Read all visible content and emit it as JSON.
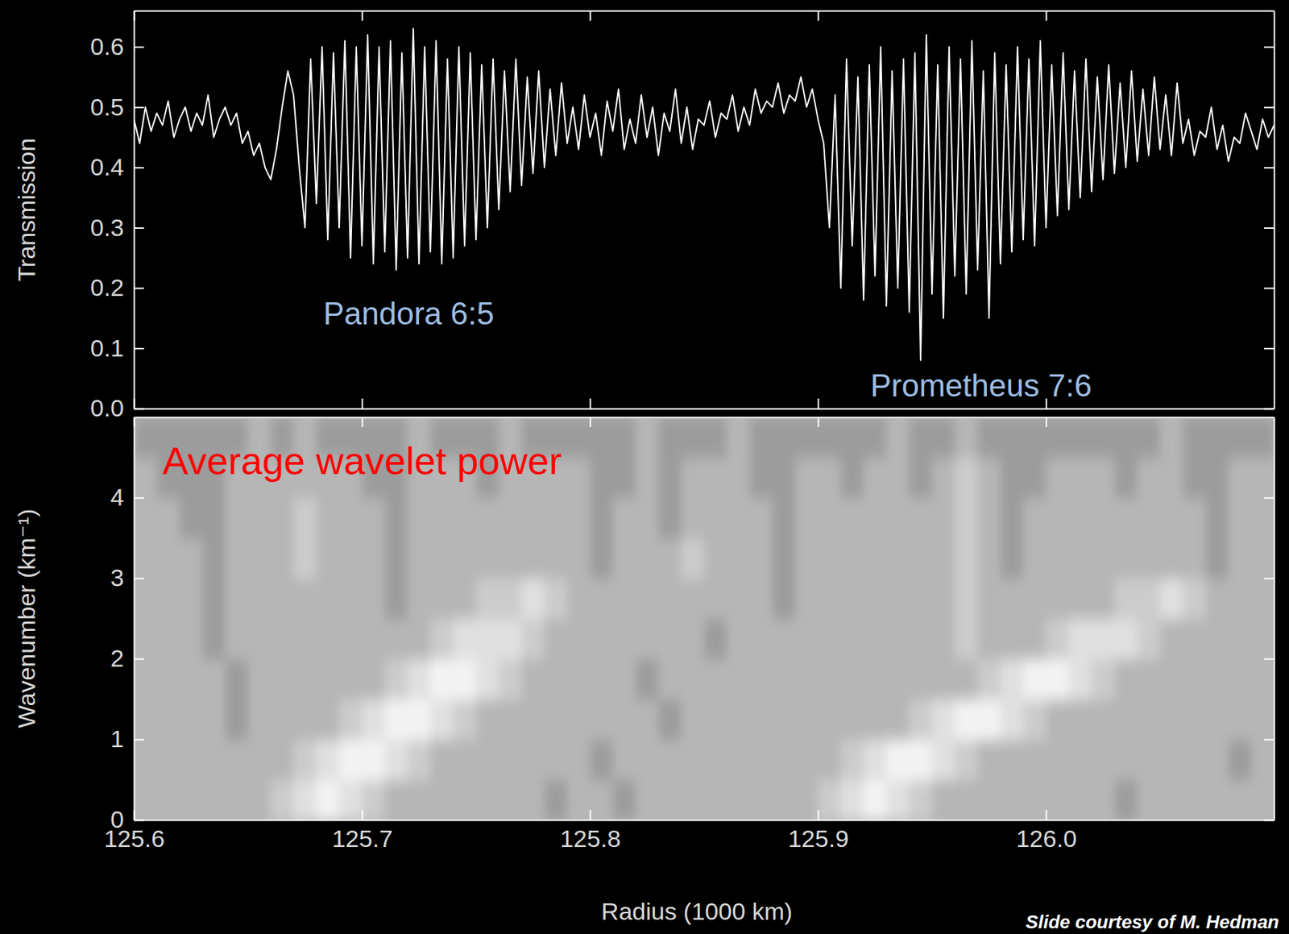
{
  "chart_data": [
    {
      "type": "line",
      "ylabel": "Transmission",
      "tick_labels": "y",
      "xlim": [
        125.6,
        126.1
      ],
      "xticks": [
        125.6,
        125.7,
        125.8,
        125.9,
        {
          "value": 126,
          "label": "126.0"
        }
      ],
      "ylim": [
        0,
        0.66
      ],
      "yticks": [
        {
          "value": 0,
          "label": "0.0"
        },
        0.1,
        0.2,
        0.3,
        0.4,
        0.5,
        0.6
      ],
      "color": "#ffffff",
      "annotations": [
        {
          "text": "Pandora 6:5",
          "x": 125.7205,
          "y": 0.153
        },
        {
          "text": "Prometheus 7:6",
          "x": 125.9715,
          "y": 0.034
        }
      ],
      "x": [
        125.6,
        125.6025,
        125.605,
        125.6075,
        125.61,
        125.6125,
        125.615,
        125.6175,
        125.62,
        125.6225,
        125.625,
        125.6275,
        125.63,
        125.6325,
        125.635,
        125.6375,
        125.64,
        125.6425,
        125.645,
        125.6475,
        125.65,
        125.6525,
        125.655,
        125.6575,
        125.66,
        125.6625,
        125.665,
        125.6675,
        125.67,
        125.6725,
        125.675,
        125.6775,
        125.68,
        125.6825,
        125.685,
        125.6875,
        125.69,
        125.6925,
        125.695,
        125.6975,
        125.7,
        125.7025,
        125.705,
        125.7075,
        125.71,
        125.7125,
        125.715,
        125.7175,
        125.72,
        125.7225,
        125.725,
        125.7275,
        125.73,
        125.7325,
        125.735,
        125.7375,
        125.74,
        125.7425,
        125.745,
        125.7475,
        125.75,
        125.7525,
        125.755,
        125.7575,
        125.76,
        125.7625,
        125.765,
        125.7675,
        125.77,
        125.7725,
        125.775,
        125.7775,
        125.78,
        125.7825,
        125.785,
        125.7875,
        125.79,
        125.7925,
        125.795,
        125.7975,
        125.8,
        125.8025,
        125.805,
        125.8075,
        125.81,
        125.8125,
        125.815,
        125.8175,
        125.82,
        125.8225,
        125.825,
        125.8275,
        125.83,
        125.8325,
        125.835,
        125.8375,
        125.84,
        125.8425,
        125.845,
        125.8475,
        125.85,
        125.8525,
        125.855,
        125.8575,
        125.86,
        125.8625,
        125.865,
        125.8675,
        125.87,
        125.8725,
        125.875,
        125.8775,
        125.88,
        125.8825,
        125.885,
        125.8875,
        125.89,
        125.8925,
        125.895,
        125.8975,
        125.9,
        125.9025,
        125.905,
        125.9075,
        125.91,
        125.9125,
        125.915,
        125.9175,
        125.92,
        125.9225,
        125.925,
        125.9275,
        125.93,
        125.9325,
        125.935,
        125.9375,
        125.94,
        125.9425,
        125.945,
        125.9475,
        125.95,
        125.9525,
        125.955,
        125.9575,
        125.96,
        125.9625,
        125.965,
        125.9675,
        125.97,
        125.9725,
        125.975,
        125.9775,
        125.98,
        125.9825,
        125.985,
        125.9875,
        125.99,
        125.9925,
        125.995,
        125.9975,
        126.0,
        126.0025,
        126.005,
        126.0075,
        126.01,
        126.0125,
        126.015,
        126.0175,
        126.02,
        126.0225,
        126.025,
        126.0275,
        126.03,
        126.0325,
        126.035,
        126.0375,
        126.04,
        126.0425,
        126.045,
        126.0475,
        126.05,
        126.0525,
        126.055,
        126.0575,
        126.06,
        126.0625,
        126.065,
        126.0675,
        126.07,
        126.0725,
        126.075,
        126.0775,
        126.08,
        126.0825,
        126.085,
        126.0875,
        126.09,
        126.0925,
        126.095,
        126.0975,
        126.1
      ],
      "values": [
        0.48,
        0.44,
        0.5,
        0.46,
        0.49,
        0.47,
        0.51,
        0.45,
        0.48,
        0.5,
        0.46,
        0.49,
        0.47,
        0.52,
        0.45,
        0.48,
        0.5,
        0.47,
        0.49,
        0.44,
        0.46,
        0.42,
        0.44,
        0.4,
        0.38,
        0.43,
        0.5,
        0.56,
        0.52,
        0.4,
        0.3,
        0.58,
        0.34,
        0.6,
        0.28,
        0.59,
        0.3,
        0.61,
        0.25,
        0.6,
        0.27,
        0.62,
        0.24,
        0.6,
        0.26,
        0.61,
        0.23,
        0.59,
        0.25,
        0.63,
        0.24,
        0.6,
        0.26,
        0.61,
        0.24,
        0.58,
        0.25,
        0.6,
        0.27,
        0.59,
        0.28,
        0.57,
        0.3,
        0.58,
        0.33,
        0.56,
        0.36,
        0.58,
        0.37,
        0.55,
        0.39,
        0.56,
        0.4,
        0.53,
        0.42,
        0.54,
        0.44,
        0.5,
        0.43,
        0.52,
        0.45,
        0.49,
        0.42,
        0.51,
        0.46,
        0.53,
        0.43,
        0.48,
        0.44,
        0.52,
        0.45,
        0.5,
        0.42,
        0.49,
        0.46,
        0.53,
        0.44,
        0.5,
        0.43,
        0.48,
        0.47,
        0.51,
        0.45,
        0.49,
        0.48,
        0.52,
        0.46,
        0.5,
        0.47,
        0.53,
        0.49,
        0.51,
        0.5,
        0.54,
        0.49,
        0.52,
        0.51,
        0.55,
        0.5,
        0.53,
        0.48,
        0.44,
        0.3,
        0.52,
        0.2,
        0.58,
        0.27,
        0.55,
        0.18,
        0.57,
        0.22,
        0.6,
        0.17,
        0.56,
        0.2,
        0.58,
        0.16,
        0.59,
        0.08,
        0.62,
        0.19,
        0.57,
        0.15,
        0.6,
        0.22,
        0.58,
        0.19,
        0.61,
        0.23,
        0.56,
        0.15,
        0.59,
        0.24,
        0.57,
        0.26,
        0.6,
        0.28,
        0.58,
        0.27,
        0.61,
        0.3,
        0.57,
        0.32,
        0.59,
        0.33,
        0.56,
        0.35,
        0.58,
        0.36,
        0.55,
        0.38,
        0.57,
        0.39,
        0.54,
        0.4,
        0.56,
        0.41,
        0.53,
        0.42,
        0.55,
        0.43,
        0.52,
        0.42,
        0.54,
        0.44,
        0.48,
        0.42,
        0.46,
        0.45,
        0.5,
        0.43,
        0.47,
        0.41,
        0.45,
        0.44,
        0.49,
        0.46,
        0.43,
        0.48,
        0.45,
        0.47
      ]
    },
    {
      "type": "heatmap",
      "title": "Average wavelet power",
      "xlabel": "Radius (1000 km)",
      "ylabel": "Wavenumber (km⁻¹)",
      "xlim": [
        125.6,
        126.1
      ],
      "xticks": [
        125.6,
        125.7,
        125.8,
        125.9,
        {
          "value": 126,
          "label": "126.0"
        }
      ],
      "ylim": [
        0,
        5
      ],
      "yticks": [
        0,
        1,
        2,
        3,
        4
      ],
      "xbins": [
        125.6,
        125.61,
        125.62,
        125.63,
        125.64,
        125.65,
        125.66,
        125.67,
        125.68,
        125.69,
        125.7,
        125.71,
        125.72,
        125.73,
        125.74,
        125.75,
        125.76,
        125.77,
        125.78,
        125.79,
        125.8,
        125.81,
        125.82,
        125.83,
        125.84,
        125.85,
        125.86,
        125.87,
        125.88,
        125.89,
        125.9,
        125.91,
        125.92,
        125.93,
        125.94,
        125.95,
        125.96,
        125.97,
        125.98,
        125.99,
        126.0,
        126.01,
        126.02,
        126.03,
        126.04,
        126.05,
        126.06,
        126.07,
        126.08,
        126.09,
        126.1
      ],
      "ybins": [
        0,
        0.5,
        1,
        1.5,
        2,
        2.5,
        3,
        3.5,
        4,
        4.5,
        5
      ],
      "levels": [
        0,
        1,
        2,
        3,
        4
      ],
      "colors": [
        "#9c9c9c",
        "#b6b6b6",
        "#cccccc",
        "#e0e0e0",
        "#f3f3f3"
      ],
      "values": [
        [
          1,
          1,
          1,
          1,
          1,
          1,
          2,
          3,
          4,
          3,
          2,
          1,
          1,
          1,
          1,
          1,
          1,
          1,
          0,
          1,
          1,
          0,
          1,
          1,
          1,
          1,
          1,
          1,
          1,
          1,
          2,
          3,
          4,
          3,
          2,
          1,
          1,
          1,
          1,
          1,
          1,
          1,
          1,
          0,
          1,
          1,
          1,
          1,
          1,
          1
        ],
        [
          1,
          1,
          1,
          1,
          1,
          1,
          1,
          2,
          3,
          4,
          4,
          3,
          2,
          1,
          1,
          1,
          1,
          1,
          1,
          1,
          0,
          1,
          1,
          1,
          1,
          1,
          1,
          1,
          1,
          1,
          1,
          2,
          3,
          4,
          4,
          3,
          2,
          1,
          1,
          1,
          1,
          1,
          1,
          1,
          1,
          1,
          1,
          1,
          0,
          1
        ],
        [
          1,
          1,
          1,
          1,
          0,
          1,
          1,
          1,
          1,
          2,
          3,
          4,
          4,
          3,
          2,
          1,
          1,
          1,
          1,
          1,
          1,
          1,
          1,
          0,
          1,
          1,
          1,
          1,
          1,
          1,
          1,
          1,
          1,
          1,
          2,
          3,
          4,
          4,
          3,
          2,
          1,
          1,
          1,
          1,
          1,
          1,
          1,
          1,
          1,
          1
        ],
        [
          1,
          1,
          1,
          1,
          0,
          1,
          1,
          1,
          1,
          1,
          1,
          2,
          3,
          4,
          4,
          3,
          2,
          1,
          1,
          1,
          1,
          1,
          0,
          1,
          1,
          1,
          1,
          1,
          1,
          1,
          1,
          1,
          1,
          1,
          1,
          1,
          1,
          2,
          3,
          4,
          4,
          3,
          2,
          1,
          1,
          1,
          1,
          1,
          1,
          1
        ],
        [
          1,
          1,
          1,
          0,
          1,
          1,
          1,
          1,
          1,
          1,
          1,
          1,
          1,
          2,
          3,
          3,
          3,
          2,
          1,
          1,
          1,
          1,
          1,
          1,
          1,
          0,
          1,
          1,
          1,
          1,
          1,
          1,
          1,
          1,
          1,
          1,
          2,
          1,
          1,
          1,
          2,
          3,
          3,
          3,
          2,
          1,
          1,
          1,
          1,
          1
        ],
        [
          1,
          1,
          1,
          0,
          1,
          1,
          1,
          1,
          1,
          1,
          1,
          0,
          1,
          1,
          1,
          2,
          2,
          3,
          2,
          1,
          1,
          1,
          1,
          1,
          1,
          1,
          1,
          1,
          0,
          1,
          1,
          1,
          1,
          1,
          1,
          1,
          2,
          1,
          1,
          1,
          1,
          1,
          1,
          2,
          2,
          3,
          2,
          1,
          1,
          1
        ],
        [
          1,
          1,
          1,
          0,
          1,
          1,
          1,
          2,
          1,
          1,
          1,
          0,
          1,
          1,
          1,
          1,
          1,
          1,
          1,
          1,
          0,
          1,
          1,
          1,
          2,
          1,
          1,
          1,
          0,
          1,
          1,
          1,
          1,
          1,
          1,
          1,
          2,
          1,
          0,
          1,
          1,
          1,
          1,
          1,
          1,
          1,
          1,
          0,
          1,
          1
        ],
        [
          1,
          1,
          0,
          0,
          1,
          1,
          1,
          2,
          1,
          1,
          1,
          0,
          1,
          1,
          1,
          1,
          1,
          1,
          1,
          1,
          0,
          1,
          1,
          0,
          1,
          1,
          1,
          1,
          0,
          1,
          1,
          1,
          1,
          1,
          1,
          1,
          2,
          1,
          0,
          1,
          1,
          1,
          1,
          1,
          1,
          1,
          1,
          0,
          1,
          1
        ],
        [
          1,
          0,
          0,
          0,
          1,
          1,
          1,
          1,
          1,
          1,
          0,
          0,
          1,
          1,
          1,
          0,
          1,
          1,
          1,
          1,
          0,
          0,
          1,
          0,
          1,
          1,
          1,
          0,
          0,
          1,
          1,
          0,
          1,
          1,
          0,
          1,
          2,
          1,
          0,
          0,
          1,
          1,
          1,
          0,
          1,
          1,
          0,
          0,
          1,
          1
        ],
        [
          0,
          0,
          0,
          0,
          0,
          1,
          0,
          1,
          0,
          0,
          0,
          0,
          1,
          0,
          0,
          0,
          1,
          0,
          0,
          0,
          0,
          0,
          1,
          0,
          0,
          0,
          1,
          0,
          0,
          0,
          0,
          0,
          0,
          1,
          0,
          0,
          1,
          0,
          0,
          0,
          0,
          0,
          0,
          0,
          0,
          1,
          0,
          0,
          0,
          0
        ]
      ]
    }
  ],
  "footer": "Slide courtesy of M. Hedman"
}
